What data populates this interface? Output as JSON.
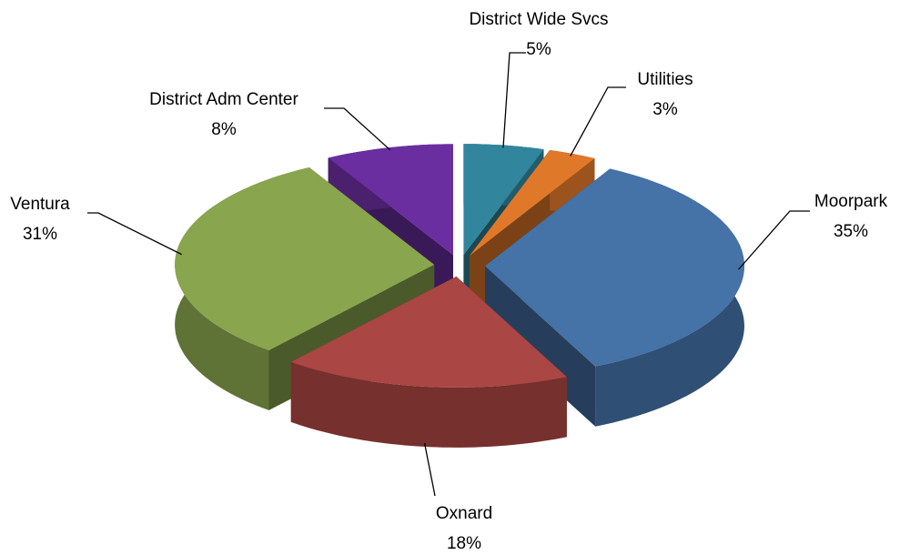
{
  "chart_data": {
    "type": "pie3d",
    "categories": [
      "District Wide Svcs",
      "Utilities",
      "Moorpark",
      "Oxnard",
      "Ventura",
      "District Adm Center"
    ],
    "values": [
      5,
      3,
      35,
      18,
      31,
      8
    ],
    "value_labels": [
      "5%",
      "3%",
      "35%",
      "18%",
      "31%",
      "8%"
    ],
    "colors": [
      "#31859c",
      "#e0782a",
      "#4572a7",
      "#aa4643",
      "#89a54e",
      "#6a2ea0"
    ]
  }
}
